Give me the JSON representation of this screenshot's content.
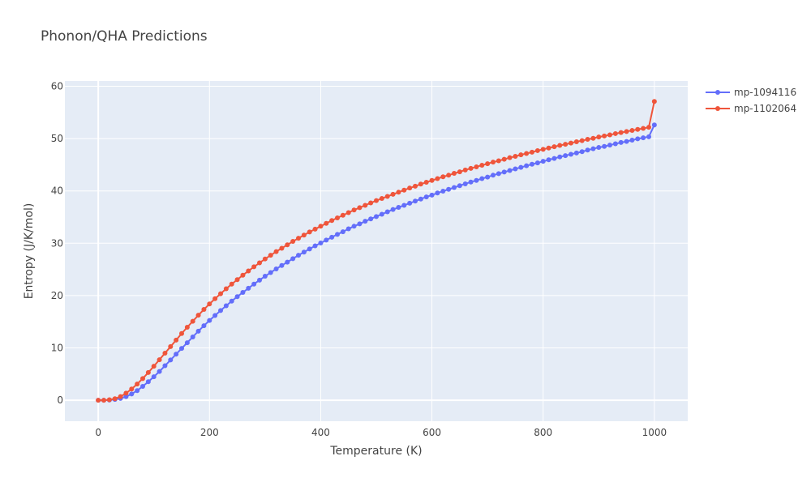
{
  "chart_data": {
    "type": "line",
    "title": "Phonon/QHA Predictions",
    "xlabel": "Temperature (K)",
    "ylabel": "Entropy (J/K/mol)",
    "xlim": [
      -60,
      1060
    ],
    "ylim": [
      -4,
      61
    ],
    "xticks": [
      0,
      200,
      400,
      600,
      800,
      1000
    ],
    "yticks": [
      0,
      10,
      20,
      30,
      40,
      50,
      60
    ],
    "grid": true,
    "legend_position": "top-right",
    "colors": {
      "mp-1094116": "#636efa",
      "mp-1102064": "#ef553b",
      "plot_bg": "#e5ecf6",
      "grid": "#ffffff"
    },
    "x": [
      0,
      10,
      20,
      30,
      40,
      50,
      60,
      70,
      80,
      90,
      100,
      110,
      120,
      130,
      140,
      150,
      160,
      170,
      180,
      190,
      200,
      210,
      220,
      230,
      240,
      250,
      260,
      270,
      280,
      290,
      300,
      310,
      320,
      330,
      340,
      350,
      360,
      370,
      380,
      390,
      400,
      410,
      420,
      430,
      440,
      450,
      460,
      470,
      480,
      490,
      500,
      510,
      520,
      530,
      540,
      550,
      560,
      570,
      580,
      590,
      600,
      610,
      620,
      630,
      640,
      650,
      660,
      670,
      680,
      690,
      700,
      710,
      720,
      730,
      740,
      750,
      760,
      770,
      780,
      790,
      800,
      810,
      820,
      830,
      840,
      850,
      860,
      870,
      880,
      890,
      900,
      910,
      920,
      930,
      940,
      950,
      960,
      970,
      980,
      990,
      1000
    ],
    "series": [
      {
        "name": "mp-1094116",
        "values": [
          0,
          0,
          0.05,
          0.15,
          0.35,
          0.7,
          1.2,
          1.85,
          2.65,
          3.55,
          4.5,
          5.5,
          6.6,
          7.7,
          8.8,
          9.9,
          11.0,
          12.1,
          13.2,
          14.25,
          15.25,
          16.2,
          17.15,
          18.05,
          18.95,
          19.8,
          20.6,
          21.4,
          22.2,
          22.95,
          23.7,
          24.4,
          25.1,
          25.75,
          26.4,
          27.05,
          27.7,
          28.3,
          28.9,
          29.5,
          30.05,
          30.6,
          31.15,
          31.7,
          32.2,
          32.75,
          33.25,
          33.7,
          34.2,
          34.65,
          35.1,
          35.55,
          36.0,
          36.45,
          36.85,
          37.25,
          37.65,
          38.05,
          38.45,
          38.85,
          39.2,
          39.6,
          39.95,
          40.3,
          40.65,
          41.0,
          41.35,
          41.7,
          42.0,
          42.35,
          42.65,
          43.0,
          43.3,
          43.6,
          43.9,
          44.2,
          44.5,
          44.8,
          45.1,
          45.35,
          45.65,
          45.95,
          46.2,
          46.5,
          46.75,
          47.0,
          47.25,
          47.5,
          47.8,
          48.05,
          48.3,
          48.5,
          48.75,
          49.0,
          49.25,
          49.45,
          49.7,
          49.95,
          50.15,
          50.35,
          52.6
        ]
      },
      {
        "name": "mp-1102064",
        "values": [
          0,
          0,
          0.1,
          0.3,
          0.7,
          1.35,
          2.15,
          3.1,
          4.15,
          5.3,
          6.5,
          7.75,
          9.0,
          10.25,
          11.5,
          12.75,
          13.95,
          15.1,
          16.25,
          17.35,
          18.4,
          19.4,
          20.35,
          21.3,
          22.2,
          23.05,
          23.9,
          24.7,
          25.5,
          26.25,
          27.0,
          27.7,
          28.4,
          29.05,
          29.7,
          30.35,
          30.95,
          31.55,
          32.15,
          32.7,
          33.25,
          33.8,
          34.35,
          34.85,
          35.35,
          35.85,
          36.35,
          36.8,
          37.25,
          37.7,
          38.15,
          38.55,
          38.95,
          39.35,
          39.75,
          40.15,
          40.55,
          40.9,
          41.3,
          41.65,
          42.0,
          42.35,
          42.7,
          43.0,
          43.35,
          43.65,
          44.0,
          44.3,
          44.6,
          44.9,
          45.2,
          45.5,
          45.75,
          46.05,
          46.35,
          46.6,
          46.9,
          47.15,
          47.4,
          47.7,
          47.95,
          48.2,
          48.45,
          48.7,
          48.9,
          49.15,
          49.4,
          49.6,
          49.85,
          50.05,
          50.3,
          50.5,
          50.7,
          50.95,
          51.15,
          51.35,
          51.55,
          51.75,
          51.95,
          52.15,
          57.1
        ]
      }
    ]
  }
}
